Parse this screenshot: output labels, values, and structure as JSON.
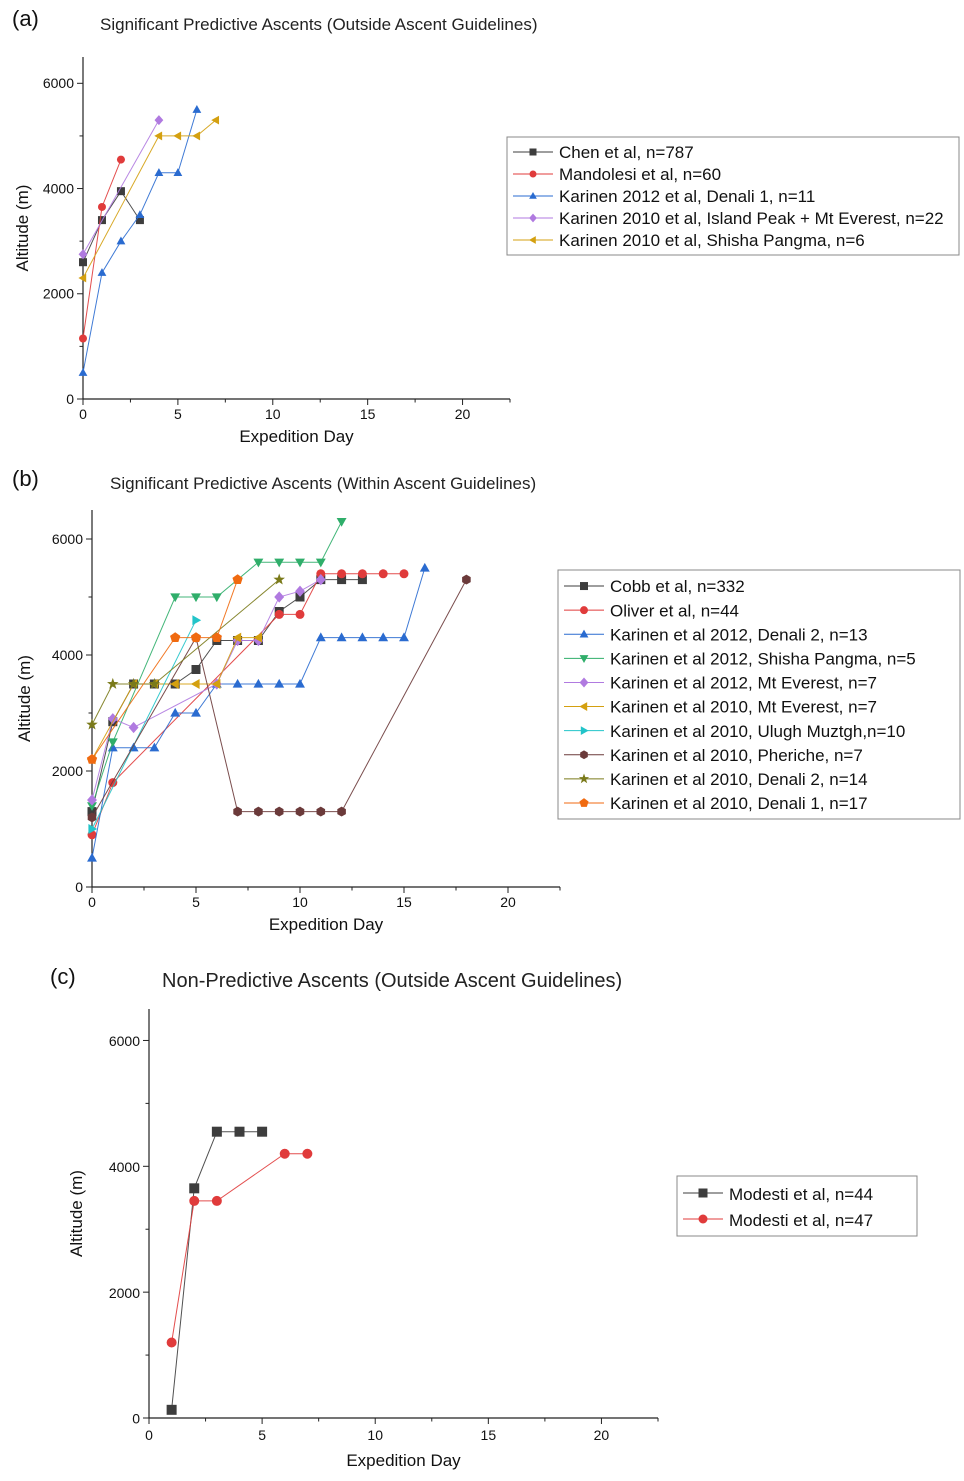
{
  "chart_data": [
    {
      "panel_label": "(a)",
      "type": "line",
      "title": "Significant Predictive Ascents (Outside Ascent Guidelines)",
      "xlabel": "Expedition Day",
      "ylabel": "Altitude (m)",
      "xlim": [
        0,
        22.5
      ],
      "ylim": [
        0,
        6500
      ],
      "xticks": [
        0,
        5,
        10,
        15,
        20
      ],
      "yticks": [
        0,
        2000,
        4000,
        6000
      ],
      "legend_position": "right",
      "series": [
        {
          "name": "Chen et al, n=787",
          "color": "#3d3d3d",
          "marker": "square",
          "x": [
            0,
            1,
            2,
            3
          ],
          "y": [
            2600,
            3400,
            3950,
            3400
          ]
        },
        {
          "name": "Mandolesi et al, n=60",
          "color": "#e03b3b",
          "marker": "circle",
          "x": [
            0,
            1,
            2
          ],
          "y": [
            1150,
            3650,
            4550
          ]
        },
        {
          "name": "Karinen 2012 et al, Denali 1, n=11",
          "color": "#2a6bd0",
          "marker": "triangle-up",
          "x": [
            0,
            1,
            2,
            3,
            4,
            5,
            6
          ],
          "y": [
            500,
            2400,
            3000,
            3500,
            4300,
            4300,
            5500
          ]
        },
        {
          "name": "Karinen 2010 et al, Island Peak + Mt Everest, n=22",
          "color": "#b07ae0",
          "marker": "diamond",
          "x": [
            0,
            4
          ],
          "y": [
            2750,
            5300
          ]
        },
        {
          "name": "Karinen 2010 et al, Shisha Pangma, n=6",
          "color": "#d4a010",
          "marker": "triangle-left",
          "x": [
            0,
            4,
            5,
            6,
            7
          ],
          "y": [
            2300,
            5000,
            5000,
            5000,
            5300
          ]
        }
      ]
    },
    {
      "panel_label": "(b)",
      "type": "line",
      "title": "Significant Predictive Ascents (Within Ascent Guidelines)",
      "xlabel": "Expedition Day",
      "ylabel": "Altitude (m)",
      "xlim": [
        0,
        22.5
      ],
      "ylim": [
        0,
        6500
      ],
      "xticks": [
        0,
        5,
        10,
        15,
        20
      ],
      "yticks": [
        0,
        2000,
        4000,
        6000
      ],
      "legend_position": "right",
      "series": [
        {
          "name": "Cobb et al, n=332",
          "color": "#3d3d3d",
          "marker": "square",
          "x": [
            0,
            1,
            2,
            3,
            4,
            5,
            6,
            7,
            8,
            9,
            10,
            11,
            12,
            13
          ],
          "y": [
            1300,
            2850,
            3500,
            3500,
            3500,
            3750,
            4250,
            4250,
            4250,
            4750,
            5000,
            5300,
            5300,
            5300
          ]
        },
        {
          "name": "Oliver et al, n=44",
          "color": "#e03b3b",
          "marker": "circle",
          "x": [
            0,
            1,
            9,
            10,
            11,
            12,
            13,
            14,
            15
          ],
          "y": [
            900,
            1800,
            4700,
            4700,
            5400,
            5400,
            5400,
            5400,
            5400
          ]
        },
        {
          "name": "Karinen et al 2012, Denali 2, n=13",
          "color": "#2a6bd0",
          "marker": "triangle-up",
          "x": [
            0,
            1,
            2,
            3,
            4,
            5,
            6,
            7,
            8,
            9,
            10,
            11,
            12,
            13,
            14,
            15,
            16
          ],
          "y": [
            500,
            2400,
            2400,
            2400,
            3000,
            3000,
            3500,
            3500,
            3500,
            3500,
            3500,
            4300,
            4300,
            4300,
            4300,
            4300,
            5500
          ]
        },
        {
          "name": "Karinen et al 2012, Shisha Pangma, n=5",
          "color": "#2fae6a",
          "marker": "triangle-down",
          "x": [
            0,
            1,
            4,
            5,
            6,
            8,
            9,
            10,
            11,
            12
          ],
          "y": [
            1400,
            2500,
            5000,
            5000,
            5000,
            5600,
            5600,
            5600,
            5600,
            6300
          ]
        },
        {
          "name": "Karinen et al 2012, Mt Everest, n=7",
          "color": "#b07ae0",
          "marker": "diamond",
          "x": [
            0,
            1,
            2,
            6,
            7,
            8,
            9,
            10,
            11
          ],
          "y": [
            1500,
            2900,
            2750,
            3500,
            4250,
            4250,
            5000,
            5100,
            5300
          ]
        },
        {
          "name": "Karinen et al 2010, Mt Everest, n=7",
          "color": "#d4a010",
          "marker": "triangle-left",
          "x": [
            0,
            2,
            3,
            4,
            5,
            6,
            7,
            8
          ],
          "y": [
            2200,
            3500,
            3500,
            3500,
            3500,
            3500,
            4300,
            4300
          ]
        },
        {
          "name": "Karinen et al 2010, Ulugh Muztgh,n=10",
          "color": "#22c4c9",
          "marker": "triangle-right",
          "x": [
            0,
            5
          ],
          "y": [
            1000,
            4600
          ]
        },
        {
          "name": "Karinen et al 2010, Pheriche, n=7",
          "color": "#6b3a3a",
          "marker": "hexagon",
          "x": [
            0,
            5,
            7,
            8,
            9,
            10,
            11,
            12,
            18
          ],
          "y": [
            1200,
            4300,
            1300,
            1300,
            1300,
            1300,
            1300,
            1300,
            5300
          ]
        },
        {
          "name": "Karinen et al 2010, Denali 2, n=14",
          "color": "#7a7a1a",
          "marker": "star",
          "x": [
            0,
            1,
            2,
            3,
            9
          ],
          "y": [
            2800,
            3500,
            3500,
            3500,
            5300
          ]
        },
        {
          "name": "Karinen et al 2010, Denali 1, n=17",
          "color": "#f06a10",
          "marker": "pentagon",
          "x": [
            0,
            4,
            5,
            6,
            7
          ],
          "y": [
            2200,
            4300,
            4300,
            4300,
            5300
          ]
        }
      ]
    },
    {
      "panel_label": "(c)",
      "type": "line",
      "title": "Non-Predictive Ascents (Outside Ascent Guidelines)",
      "xlabel": "Expedition Day",
      "ylabel": "Altitude (m)",
      "xlim": [
        0,
        22.5
      ],
      "ylim": [
        0,
        6500
      ],
      "xticks": [
        0,
        5,
        10,
        15,
        20
      ],
      "yticks": [
        0,
        2000,
        4000,
        6000
      ],
      "legend_position": "right",
      "series": [
        {
          "name": "Modesti et al, n=44",
          "color": "#3d3d3d",
          "marker": "square",
          "x": [
            1,
            2,
            3,
            4,
            5
          ],
          "y": [
            130,
            3650,
            4550,
            4550,
            4550
          ]
        },
        {
          "name": "Modesti et al, n=47",
          "color": "#e03b3b",
          "marker": "circle",
          "x": [
            1,
            2,
            3,
            6,
            7
          ],
          "y": [
            1200,
            3450,
            3450,
            4200,
            4200
          ]
        }
      ]
    }
  ]
}
